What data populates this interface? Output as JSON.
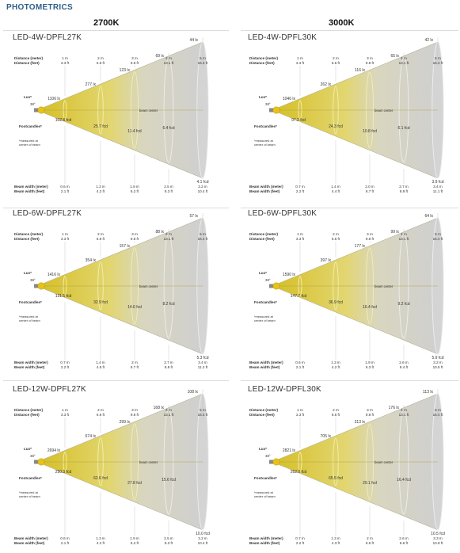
{
  "header": {
    "title": "PHOTOMETRICS",
    "columns": [
      "2700K",
      "3000K"
    ]
  },
  "common": {
    "label_distance_m": "Distance (meter)",
    "label_distance_ft": "Distance (feet)",
    "label_lux": "Lux*",
    "label_footcandles": "Footcandles*",
    "label_note": [
      "*measured at",
      "center of beam"
    ],
    "label_beam_center": "beam center",
    "label_beam_width_m": "Beam width (meter)",
    "label_beam_width_ft": "Beam width (feet)",
    "distances_m": [
      "1 m",
      "2 m",
      "3 m",
      "4 m",
      "5 m"
    ],
    "distances_ft": [
      "3.3 ft",
      "6.6 ft",
      "9.8 ft",
      "13.1 ft",
      "16.4 ft"
    ],
    "beam_angle": "38°",
    "colors": {
      "beam_yellow": "#d6c02a",
      "beam_grey": "#cfcfcf",
      "bulb": "#e8c315",
      "title_blue": "#2f5f88"
    }
  },
  "panels": [
    {
      "id": "p1",
      "title": "LED-4W-DPFL27K",
      "lux": [
        "1106 lx",
        "277 lx",
        "123 lx",
        "69 lx",
        "44 lx"
      ],
      "fc": [
        "102.8 fcd",
        "25.7 fcd",
        "11.4 fcd",
        "6.4 fcd",
        "4.1 fcd"
      ],
      "bw_m": [
        "0.6 m",
        "1.3 m",
        "1.9 m",
        "2.5 m",
        "3.2 m"
      ],
      "bw_ft": [
        "2.1 ft",
        "4.2 ft",
        "6.2 ft",
        "8.3 ft",
        "10.4 ft"
      ]
    },
    {
      "id": "p2",
      "title": "LED-4W-DPFL30K",
      "lux": [
        "1046 lx",
        "262 lx",
        "116 lx",
        "65 lx",
        "42 lx"
      ],
      "fc": [
        "97.2 fcd",
        "24.3 fcd",
        "10.8 fcd",
        "6.1 fcd",
        "3.9 fcd"
      ],
      "bw_m": [
        "0.7 m",
        "1.4 m",
        "2.0 m",
        "2.7 m",
        "3.4 m"
      ],
      "bw_ft": [
        "2.2 ft",
        "4.4 ft",
        "6.7 ft",
        "8.9 ft",
        "11.1 ft"
      ]
    },
    {
      "id": "p3",
      "title": "LED-6W-DPFL27K",
      "lux": [
        "1416 lx",
        "354 lx",
        "157 lx",
        "88 lx",
        "57 lx"
      ],
      "fc": [
        "131.5 fcd",
        "32.9 fcd",
        "14.6 fcd",
        "8.2 fcd",
        "5.3 fcd"
      ],
      "bw_m": [
        "0.7 m",
        "1.4 m",
        "2 m",
        "2.7 m",
        "3.4 m"
      ],
      "bw_ft": [
        "2.2 ft",
        "4.5 ft",
        "6.7 ft",
        "8.9 ft",
        "11.2 ft"
      ]
    },
    {
      "id": "p4",
      "title": "LED-6W-DPFL30K",
      "lux": [
        "1590 lx",
        "397 lx",
        "177 lx",
        "99 lx",
        "64 lx"
      ],
      "fc": [
        "147.7 fcd",
        "36.9 fcd",
        "16.4 fcd",
        "9.2 fcd",
        "5.9 fcd"
      ],
      "bw_m": [
        "0.6 m",
        "1.3 m",
        "1.9 m",
        "2.6 m",
        "3.2 m"
      ],
      "bw_ft": [
        "2.1 ft",
        "4.2 ft",
        "6.3 ft",
        "8.4 ft",
        "10.5 ft"
      ]
    },
    {
      "id": "p5",
      "title": "LED-12W-DPFL27K",
      "lux": [
        "2694 lx",
        "674 lx",
        "299 lx",
        "168 lx",
        "108 lx"
      ],
      "fc": [
        "250.3 fcd",
        "62.6 fcd",
        "27.8 fcd",
        "15.6 fcd",
        "10.0 fcd"
      ],
      "bw_m": [
        "0.6 m",
        "1.3 m",
        "1.9 m",
        "2.5 m",
        "3.2 m"
      ],
      "bw_ft": [
        "2.1 ft",
        "4.2 ft",
        "6.2 ft",
        "8.3 ft",
        "10.4 ft"
      ]
    },
    {
      "id": "p6",
      "title": "LED-12W-DPFL30K",
      "lux": [
        "2821 lx",
        "705 lx",
        "313 lx",
        "176 lx",
        "113 lx"
      ],
      "fc": [
        "262.0 fcd",
        "65.5 fcd",
        "29.1 fcd",
        "16.4 fcd",
        "10.5 fcd"
      ],
      "bw_m": [
        "0.7 m",
        "1.3 m",
        "2 m",
        "2.6 m",
        "3.3 m"
      ],
      "bw_ft": [
        "2.2 ft",
        "4.3 ft",
        "6.5 ft",
        "8.6 ft",
        "10.8 ft"
      ]
    }
  ]
}
